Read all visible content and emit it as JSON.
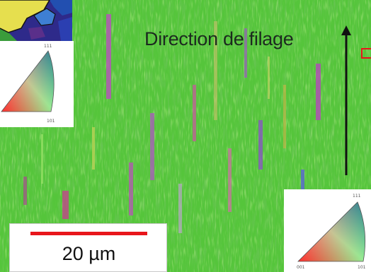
{
  "figure": {
    "annotation": "Direction de filage",
    "scale_label": "20 µm",
    "colors": {
      "matrix_green": "#52c43a",
      "scale_bar": "#e8161b",
      "arrow": "#111111"
    }
  },
  "ipf_key_left": {
    "top": "111",
    "bottom_right": "101"
  },
  "ipf_key_right": {
    "top": "111",
    "bottom_left": "001",
    "bottom_right": "101"
  }
}
